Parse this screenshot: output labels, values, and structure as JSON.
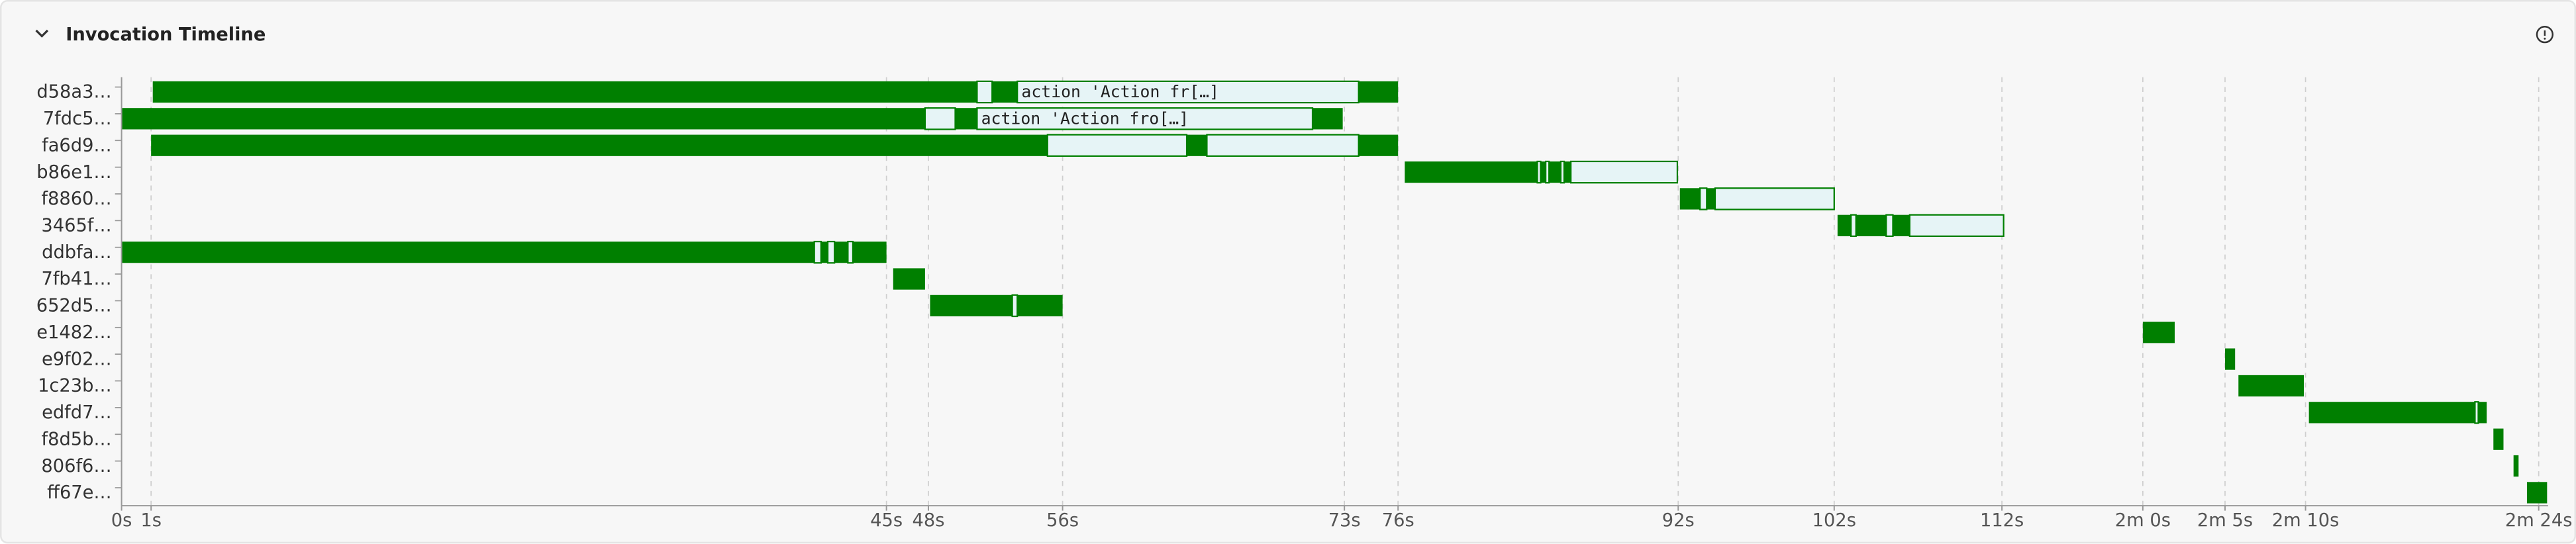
{
  "header": {
    "title": "Invocation Timeline"
  },
  "timeline": {
    "xlim": [
      0,
      144.6
    ],
    "colors": {
      "filled": "#007f00",
      "open": "#e6f4f6",
      "edge": "#007f00"
    },
    "xticks": [
      {
        "value": 0,
        "label": "0s"
      },
      {
        "value": 1.76,
        "label": "1s"
      },
      {
        "value": 45.6,
        "label": "45s"
      },
      {
        "value": 48.1,
        "label": "48s"
      },
      {
        "value": 56.1,
        "label": "56s"
      },
      {
        "value": 72.9,
        "label": "73s"
      },
      {
        "value": 76.1,
        "label": "76s"
      },
      {
        "value": 92.8,
        "label": "92s"
      },
      {
        "value": 102.1,
        "label": "102s"
      },
      {
        "value": 112.1,
        "label": "112s"
      },
      {
        "value": 120.5,
        "label": "2m 0s"
      },
      {
        "value": 125.4,
        "label": "2m 5s"
      },
      {
        "value": 130.2,
        "label": "2m 10s"
      },
      {
        "value": 144.1,
        "label": "2m 24s"
      }
    ],
    "rows": [
      {
        "label": "d58a3…",
        "segments": [
          {
            "start": 1.86,
            "end": 51.0,
            "state": "filled"
          },
          {
            "start": 51.0,
            "end": 51.9,
            "state": "open"
          },
          {
            "start": 51.9,
            "end": 53.4,
            "state": "filled"
          },
          {
            "start": 53.4,
            "end": 73.75,
            "state": "open",
            "label": "action 'Action fr[…]"
          },
          {
            "start": 73.75,
            "end": 76.1,
            "state": "filled"
          }
        ]
      },
      {
        "label": "7fdc5…",
        "segments": [
          {
            "start": 0,
            "end": 47.9,
            "state": "filled"
          },
          {
            "start": 47.9,
            "end": 49.7,
            "state": "open"
          },
          {
            "start": 49.7,
            "end": 51.0,
            "state": "filled"
          },
          {
            "start": 51.0,
            "end": 71.0,
            "state": "open",
            "label": "action 'Action fro[…]"
          },
          {
            "start": 71.0,
            "end": 72.8,
            "state": "filled"
          }
        ]
      },
      {
        "label": "fa6d9…",
        "segments": [
          {
            "start": 1.76,
            "end": 55.2,
            "state": "filled"
          },
          {
            "start": 55.2,
            "end": 63.5,
            "state": "open"
          },
          {
            "start": 63.5,
            "end": 64.7,
            "state": "filled"
          },
          {
            "start": 64.7,
            "end": 73.75,
            "state": "open"
          },
          {
            "start": 73.75,
            "end": 76.1,
            "state": "filled"
          }
        ]
      },
      {
        "label": "b86e1…",
        "segments": [
          {
            "start": 76.5,
            "end": 84.4,
            "state": "filled"
          },
          {
            "start": 84.4,
            "end": 84.6,
            "state": "open"
          },
          {
            "start": 84.6,
            "end": 84.9,
            "state": "filled"
          },
          {
            "start": 84.9,
            "end": 85.1,
            "state": "open"
          },
          {
            "start": 85.1,
            "end": 85.8,
            "state": "filled"
          },
          {
            "start": 85.8,
            "end": 86.0,
            "state": "open"
          },
          {
            "start": 86.0,
            "end": 86.4,
            "state": "filled"
          },
          {
            "start": 86.4,
            "end": 92.75,
            "state": "open"
          }
        ]
      },
      {
        "label": "f8860…",
        "segments": [
          {
            "start": 92.9,
            "end": 94.1,
            "state": "filled"
          },
          {
            "start": 94.1,
            "end": 94.5,
            "state": "open"
          },
          {
            "start": 94.5,
            "end": 95.0,
            "state": "filled"
          },
          {
            "start": 95.0,
            "end": 102.1,
            "state": "open"
          }
        ]
      },
      {
        "label": "3465f…",
        "segments": [
          {
            "start": 102.3,
            "end": 103.1,
            "state": "filled"
          },
          {
            "start": 103.1,
            "end": 103.4,
            "state": "open"
          },
          {
            "start": 103.4,
            "end": 105.2,
            "state": "filled"
          },
          {
            "start": 105.2,
            "end": 105.6,
            "state": "open"
          },
          {
            "start": 105.6,
            "end": 106.6,
            "state": "filled"
          },
          {
            "start": 106.6,
            "end": 112.2,
            "state": "open"
          }
        ]
      },
      {
        "label": "ddbfa…",
        "segments": [
          {
            "start": 0,
            "end": 41.3,
            "state": "filled"
          },
          {
            "start": 41.3,
            "end": 41.7,
            "state": "open"
          },
          {
            "start": 41.7,
            "end": 42.1,
            "state": "filled"
          },
          {
            "start": 42.1,
            "end": 42.5,
            "state": "open"
          },
          {
            "start": 42.5,
            "end": 43.3,
            "state": "filled"
          },
          {
            "start": 43.3,
            "end": 43.6,
            "state": "open"
          },
          {
            "start": 43.6,
            "end": 45.6,
            "state": "filled"
          }
        ]
      },
      {
        "label": "7fb41…",
        "segments": [
          {
            "start": 46.0,
            "end": 47.9,
            "state": "filled"
          }
        ]
      },
      {
        "label": "652d5…",
        "segments": [
          {
            "start": 48.2,
            "end": 53.1,
            "state": "filled"
          },
          {
            "start": 53.1,
            "end": 53.4,
            "state": "open"
          },
          {
            "start": 53.4,
            "end": 56.1,
            "state": "filled"
          }
        ]
      },
      {
        "label": "e1482…",
        "segments": [
          {
            "start": 120.5,
            "end": 122.4,
            "state": "filled"
          }
        ]
      },
      {
        "label": "e9f02…",
        "segments": [
          {
            "start": 125.4,
            "end": 126.0,
            "state": "filled"
          }
        ]
      },
      {
        "label": "1c23b…",
        "segments": [
          {
            "start": 126.2,
            "end": 130.1,
            "state": "filled"
          }
        ]
      },
      {
        "label": "edfd7…",
        "segments": [
          {
            "start": 130.4,
            "end": 140.3,
            "state": "filled"
          },
          {
            "start": 140.3,
            "end": 140.5,
            "state": "open"
          },
          {
            "start": 140.5,
            "end": 141.0,
            "state": "filled"
          }
        ]
      },
      {
        "label": "f8d5b…",
        "segments": [
          {
            "start": 141.4,
            "end": 142.0,
            "state": "filled"
          }
        ]
      },
      {
        "label": "806f6…",
        "segments": [
          {
            "start": 142.6,
            "end": 142.9,
            "state": "filled"
          }
        ]
      },
      {
        "label": "ff67e…",
        "segments": [
          {
            "start": 143.4,
            "end": 144.6,
            "state": "filled"
          }
        ]
      }
    ]
  }
}
